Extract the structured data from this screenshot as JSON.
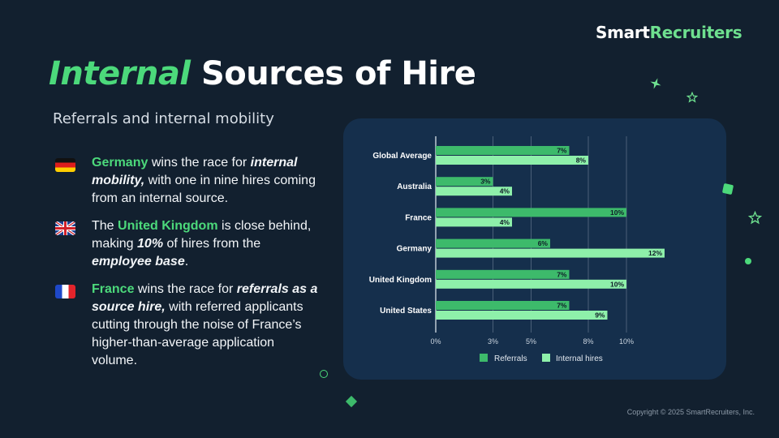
{
  "brand": {
    "part1": "Smart",
    "part2": "Recruiters"
  },
  "title": {
    "accent": "Internal",
    "rest": "Sources of Hire"
  },
  "subtitle": "Referrals and internal mobility",
  "bullets": [
    {
      "flag_icon": "germany-flag",
      "highlight": "Germany",
      "t1": " wins the race for ",
      "em1": "internal mobility,",
      "t2": " with one in nine hires coming from an internal source."
    },
    {
      "flag_icon": "united-kingdom-flag",
      "t0": "The ",
      "highlight": "United Kingdom",
      "t1": " is close behind, making ",
      "em1": "10%",
      "t2": " of hires from the ",
      "em2": "employee base",
      "t3": "."
    },
    {
      "flag_icon": "france-flag",
      "highlight": "France",
      "t1": " wins the race for ",
      "em1": "referrals as a source hire,",
      "t2": " with referred applicants cutting through the noise of France’s higher-than-average application volume."
    }
  ],
  "chart_data": {
    "type": "bar",
    "orientation": "horizontal",
    "categories": [
      "Global Average",
      "Australia",
      "France",
      "Germany",
      "United Kingdom",
      "United States"
    ],
    "series": [
      {
        "name": "Referrals",
        "values": [
          7,
          3,
          10,
          6,
          7,
          7
        ],
        "labels": [
          "7%",
          "3%",
          "10%",
          "6%",
          "7%",
          "7%"
        ],
        "color": "#3dba6b"
      },
      {
        "name": "Internal hires",
        "values": [
          8,
          4,
          4,
          12,
          10,
          9
        ],
        "labels": [
          "8%",
          "4%",
          "4%",
          "12%",
          "10%",
          "9%"
        ],
        "color": "#8ef0aa"
      }
    ],
    "x_ticks": [
      0,
      3,
      5,
      8,
      10
    ],
    "x_tick_labels": [
      "0%",
      "3%",
      "5%",
      "8%",
      "10%"
    ],
    "xlim": [
      0,
      12.3
    ],
    "grid": true,
    "legend": "bottom-center"
  },
  "colors": {
    "background": "#12202f",
    "card": "#152f4c",
    "accent": "#4cd97b"
  },
  "copyright": "Copyright © 2025 SmartRecruiters, Inc."
}
